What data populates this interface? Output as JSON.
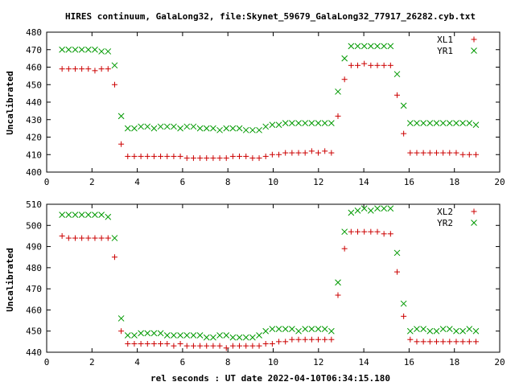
{
  "title": "HIRES continuum, GalaLong32, file:Skynet_59679_GalaLong32_77917_26282.cyb.txt",
  "colors": {
    "red": "#cc0000",
    "green": "#009900",
    "axis": "#000000"
  },
  "chart_data": [
    {
      "type": "scatter",
      "xlabel": "",
      "ylabel": "Uncalibrated",
      "xlim": [
        0,
        20
      ],
      "ylim": [
        400,
        480
      ],
      "x_ticks": [
        0,
        2,
        4,
        6,
        8,
        10,
        12,
        14,
        16,
        18,
        20
      ],
      "y_ticks": [
        400,
        410,
        420,
        430,
        440,
        450,
        460,
        470,
        480
      ],
      "legend": "top-right",
      "series": [
        {
          "name": "XL1",
          "marker": "plus",
          "color": "#cc0000",
          "x": [
            0.68,
            0.97,
            1.26,
            1.55,
            1.84,
            2.13,
            2.42,
            2.71,
            3.0,
            3.29,
            3.58,
            3.87,
            4.16,
            4.45,
            4.74,
            5.03,
            5.32,
            5.61,
            5.9,
            6.19,
            6.48,
            6.77,
            7.06,
            7.35,
            7.64,
            7.93,
            8.22,
            8.51,
            8.8,
            9.09,
            9.38,
            9.67,
            9.96,
            10.25,
            10.54,
            10.83,
            11.12,
            11.41,
            11.7,
            11.99,
            12.28,
            12.57,
            12.86,
            13.15,
            13.44,
            13.73,
            14.02,
            14.31,
            14.6,
            14.89,
            15.18,
            15.47,
            15.76,
            16.05,
            16.34,
            16.63,
            16.92,
            17.21,
            17.5,
            17.79,
            18.08,
            18.37,
            18.66,
            18.95
          ],
          "y": [
            459,
            459,
            459,
            459,
            459,
            458,
            459,
            459,
            450,
            416,
            409,
            409,
            409,
            409,
            409,
            409,
            409,
            409,
            409,
            408,
            408,
            408,
            408,
            408,
            408,
            408,
            409,
            409,
            409,
            408,
            408,
            409,
            410,
            410,
            411,
            411,
            411,
            411,
            412,
            411,
            412,
            411,
            432,
            453,
            461,
            461,
            462,
            461,
            461,
            461,
            461,
            444,
            422,
            411,
            411,
            411,
            411,
            411,
            411,
            411,
            411,
            410,
            410,
            410
          ]
        },
        {
          "name": "YR1",
          "marker": "x",
          "color": "#009900",
          "x": [
            0.68,
            0.97,
            1.26,
            1.55,
            1.84,
            2.13,
            2.42,
            2.71,
            3.0,
            3.29,
            3.58,
            3.87,
            4.16,
            4.45,
            4.74,
            5.03,
            5.32,
            5.61,
            5.9,
            6.19,
            6.48,
            6.77,
            7.06,
            7.35,
            7.64,
            7.93,
            8.22,
            8.51,
            8.8,
            9.09,
            9.38,
            9.67,
            9.96,
            10.25,
            10.54,
            10.83,
            11.12,
            11.41,
            11.7,
            11.99,
            12.28,
            12.57,
            12.86,
            13.15,
            13.44,
            13.73,
            14.02,
            14.31,
            14.6,
            14.89,
            15.18,
            15.47,
            15.76,
            16.05,
            16.34,
            16.63,
            16.92,
            17.21,
            17.5,
            17.79,
            18.08,
            18.37,
            18.66,
            18.95
          ],
          "y": [
            470,
            470,
            470,
            470,
            470,
            470,
            469,
            469,
            461,
            432,
            425,
            425,
            426,
            426,
            425,
            426,
            426,
            426,
            425,
            426,
            426,
            425,
            425,
            425,
            424,
            425,
            425,
            425,
            424,
            424,
            424,
            426,
            427,
            427,
            428,
            428,
            428,
            428,
            428,
            428,
            428,
            428,
            446,
            465,
            472,
            472,
            472,
            472,
            472,
            472,
            472,
            456,
            438,
            428,
            428,
            428,
            428,
            428,
            428,
            428,
            428,
            428,
            428,
            427
          ]
        }
      ]
    },
    {
      "type": "scatter",
      "xlabel": "rel seconds : UT date 2022-04-10T06:34:15.180",
      "ylabel": "Uncalibrated",
      "xlim": [
        0,
        20
      ],
      "ylim": [
        440,
        510
      ],
      "x_ticks": [
        0,
        2,
        4,
        6,
        8,
        10,
        12,
        14,
        16,
        18,
        20
      ],
      "y_ticks": [
        440,
        450,
        460,
        470,
        480,
        490,
        500,
        510
      ],
      "legend": "top-right",
      "series": [
        {
          "name": "XL2",
          "marker": "plus",
          "color": "#cc0000",
          "x": [
            0.68,
            0.97,
            1.26,
            1.55,
            1.84,
            2.13,
            2.42,
            2.71,
            3.0,
            3.29,
            3.58,
            3.87,
            4.16,
            4.45,
            4.74,
            5.03,
            5.32,
            5.61,
            5.9,
            6.19,
            6.48,
            6.77,
            7.06,
            7.35,
            7.64,
            7.93,
            8.22,
            8.51,
            8.8,
            9.09,
            9.38,
            9.67,
            9.96,
            10.25,
            10.54,
            10.83,
            11.12,
            11.41,
            11.7,
            11.99,
            12.28,
            12.57,
            12.86,
            13.15,
            13.44,
            13.73,
            14.02,
            14.31,
            14.6,
            14.89,
            15.18,
            15.47,
            15.76,
            16.05,
            16.34,
            16.63,
            16.92,
            17.21,
            17.5,
            17.79,
            18.08,
            18.37,
            18.66,
            18.95
          ],
          "y": [
            495,
            494,
            494,
            494,
            494,
            494,
            494,
            494,
            485,
            450,
            444,
            444,
            444,
            444,
            444,
            444,
            444,
            443,
            444,
            443,
            443,
            443,
            443,
            443,
            443,
            442,
            443,
            443,
            443,
            443,
            443,
            444,
            444,
            445,
            445,
            446,
            446,
            446,
            446,
            446,
            446,
            446,
            467,
            489,
            497,
            497,
            497,
            497,
            497,
            496,
            496,
            478,
            457,
            446,
            445,
            445,
            445,
            445,
            445,
            445,
            445,
            445,
            445,
            445
          ]
        },
        {
          "name": "YR2",
          "marker": "x",
          "color": "#009900",
          "x": [
            0.68,
            0.97,
            1.26,
            1.55,
            1.84,
            2.13,
            2.42,
            2.71,
            3.0,
            3.29,
            3.58,
            3.87,
            4.16,
            4.45,
            4.74,
            5.03,
            5.32,
            5.61,
            5.9,
            6.19,
            6.48,
            6.77,
            7.06,
            7.35,
            7.64,
            7.93,
            8.22,
            8.51,
            8.8,
            9.09,
            9.38,
            9.67,
            9.96,
            10.25,
            10.54,
            10.83,
            11.12,
            11.41,
            11.7,
            11.99,
            12.28,
            12.57,
            12.86,
            13.15,
            13.44,
            13.73,
            14.02,
            14.31,
            14.6,
            14.89,
            15.18,
            15.47,
            15.76,
            16.05,
            16.34,
            16.63,
            16.92,
            17.21,
            17.5,
            17.79,
            18.08,
            18.37,
            18.66,
            18.95
          ],
          "y": [
            505,
            505,
            505,
            505,
            505,
            505,
            505,
            504,
            494,
            456,
            448,
            448,
            449,
            449,
            449,
            449,
            448,
            448,
            448,
            448,
            448,
            448,
            447,
            447,
            448,
            448,
            447,
            447,
            447,
            447,
            448,
            450,
            451,
            451,
            451,
            451,
            450,
            451,
            451,
            451,
            451,
            450,
            473,
            497,
            506,
            507,
            508,
            507,
            508,
            508,
            508,
            487,
            463,
            450,
            451,
            451,
            450,
            450,
            451,
            451,
            450,
            450,
            451,
            450
          ]
        }
      ]
    }
  ]
}
